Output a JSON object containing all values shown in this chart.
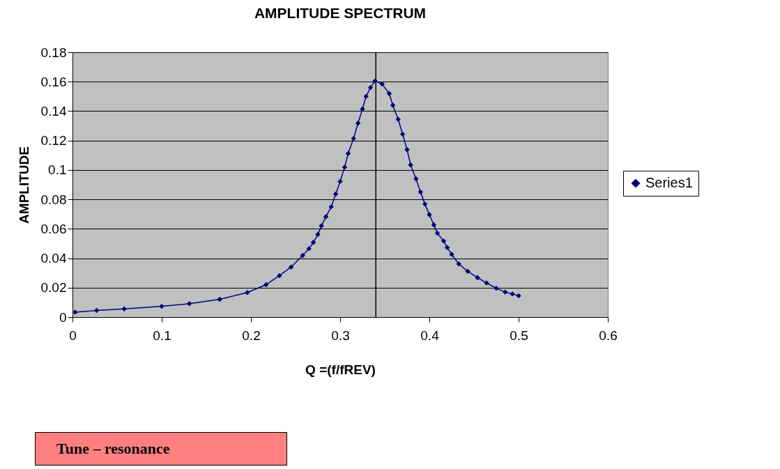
{
  "chart_data": {
    "type": "line",
    "title": "AMPLITUDE SPECTRUM",
    "xlabel": "Q =(f/fREV)",
    "ylabel": "AMPLITUDE",
    "xlim": [
      0,
      0.6
    ],
    "xticks": [
      0,
      0.1,
      0.2,
      0.3,
      0.4,
      0.5,
      0.6
    ],
    "ylim": [
      0,
      0.18
    ],
    "yticks": [
      0,
      0.02,
      0.04,
      0.06,
      0.08,
      0.1,
      0.12,
      0.14,
      0.16,
      0.18
    ],
    "grid": "y",
    "legend": "right",
    "marker": "diamond",
    "line_style": "solid",
    "ref_lines": [
      {
        "axis": "x",
        "value": 0.34,
        "color": "#000000"
      }
    ],
    "annotations": [
      "Tune – resonance"
    ],
    "series": [
      {
        "name": "Series1",
        "color": "#000080",
        "x": [
          0.003,
          0.027,
          0.058,
          0.1,
          0.131,
          0.165,
          0.196,
          0.217,
          0.232,
          0.245,
          0.258,
          0.265,
          0.27,
          0.275,
          0.279,
          0.284,
          0.29,
          0.295,
          0.3,
          0.305,
          0.309,
          0.315,
          0.32,
          0.325,
          0.329,
          0.334,
          0.339,
          0.347,
          0.355,
          0.359,
          0.365,
          0.37,
          0.375,
          0.379,
          0.385,
          0.39,
          0.395,
          0.4,
          0.405,
          0.409,
          0.416,
          0.42,
          0.425,
          0.433,
          0.443,
          0.454,
          0.464,
          0.475,
          0.485,
          0.493,
          0.5
        ],
        "values": [
          0.0033,
          0.0045,
          0.0056,
          0.0073,
          0.0091,
          0.0121,
          0.0167,
          0.022,
          0.0282,
          0.034,
          0.0419,
          0.0465,
          0.0508,
          0.0562,
          0.062,
          0.0682,
          0.075,
          0.0836,
          0.0922,
          0.1019,
          0.1112,
          0.1214,
          0.1318,
          0.1414,
          0.15,
          0.156,
          0.1605,
          0.1584,
          0.1519,
          0.144,
          0.1344,
          0.1243,
          0.1138,
          0.1034,
          0.094,
          0.085,
          0.0768,
          0.0696,
          0.0627,
          0.057,
          0.0517,
          0.0473,
          0.0426,
          0.0361,
          0.0311,
          0.0268,
          0.0232,
          0.0196,
          0.017,
          0.0157,
          0.0145
        ]
      }
    ]
  }
}
